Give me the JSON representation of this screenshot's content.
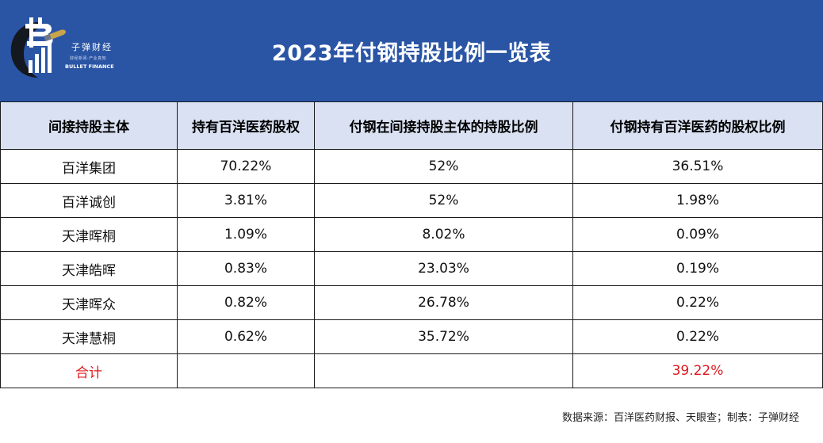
{
  "header": {
    "title": "2023年付钢持股比例一览表",
    "logo_cn": "子弹财经",
    "logo_tagline": "财经新闻·产业真知",
    "logo_en": "BULLET FINANCE"
  },
  "table": {
    "columns": [
      "间接持股主体",
      "持有百洋医药股权",
      "付钢在间接持股主体的持股比例",
      "付钢持有百洋医药的股权比例"
    ],
    "rows": [
      [
        "百洋集团",
        "70.22%",
        "52%",
        "36.51%"
      ],
      [
        "百洋诚创",
        "3.81%",
        "52%",
        "1.98%"
      ],
      [
        "天津晖桐",
        "1.09%",
        "8.02%",
        "0.09%"
      ],
      [
        "天津皓晖",
        "0.83%",
        "23.03%",
        "0.19%"
      ],
      [
        "天津晖众",
        "0.82%",
        "26.78%",
        "0.22%"
      ],
      [
        "天津慧桐",
        "0.62%",
        "35.72%",
        "0.22%"
      ]
    ],
    "total": {
      "label": "合计",
      "holding": "",
      "ratio": "",
      "share": "39.22%"
    }
  },
  "footer": {
    "source": "数据来源：百洋医药财报、天眼查；制表：子弹财经"
  },
  "colors": {
    "header_bg": "#2a55a5",
    "column_header_bg": "#d9e1f2",
    "highlight": "#e0191e"
  }
}
